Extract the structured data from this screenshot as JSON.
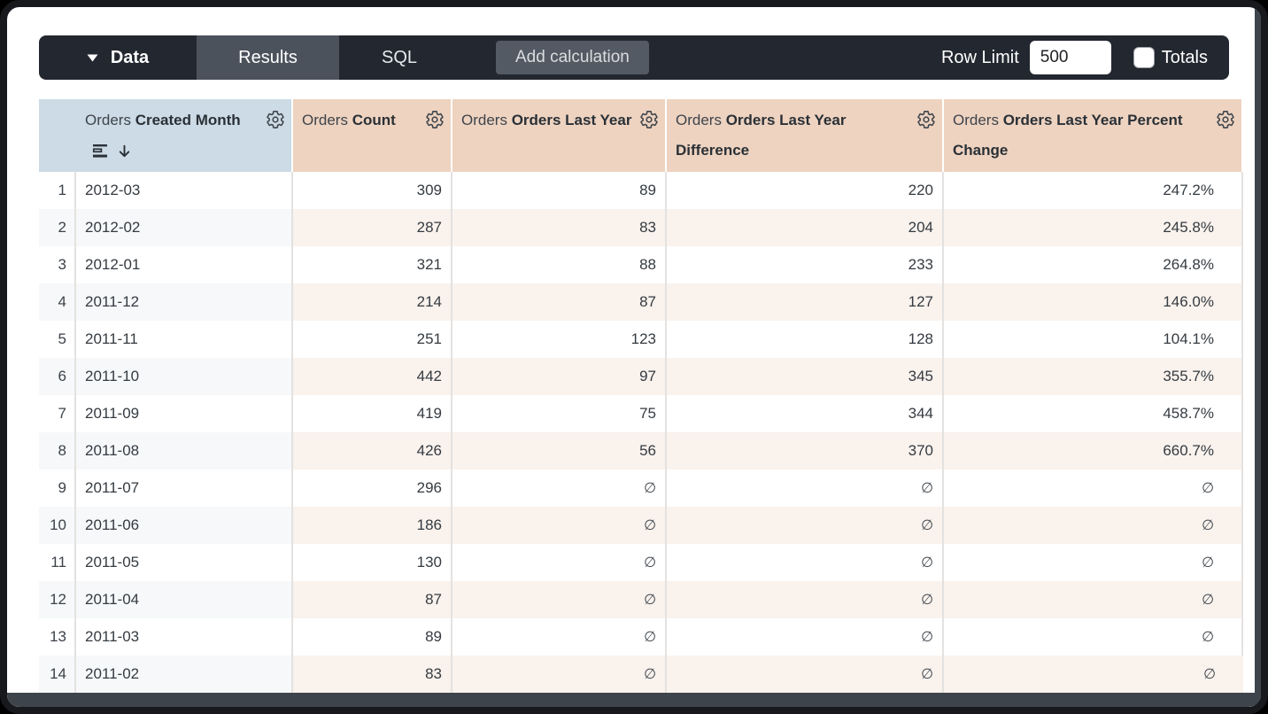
{
  "toolbar": {
    "data_label": "Data",
    "results_label": "Results",
    "sql_label": "SQL",
    "add_calculation_label": "Add calculation",
    "row_limit_label": "Row Limit",
    "row_limit_value": "500",
    "totals_label": "Totals",
    "totals_checked": false
  },
  "colors": {
    "toolbar_bg": "#23272f",
    "active_tab_bg": "#4c525c",
    "dimension_header_bg": "#ccdbe5",
    "measure_header_bg": "#eed3c0",
    "even_row_dimension_bg": "#f6f8fa",
    "even_row_measure_bg": "#f9f2ed"
  },
  "table": {
    "null_symbol": "∅",
    "columns": [
      {
        "view": "Orders",
        "field": "Created Month",
        "type": "dimension",
        "sorted_desc": true
      },
      {
        "view": "Orders",
        "field": "Count",
        "type": "measure",
        "sorted_desc": false
      },
      {
        "view": "Orders",
        "field": "Orders Last Year",
        "type": "measure",
        "sorted_desc": false
      },
      {
        "view": "Orders",
        "field": "Orders Last Year Difference",
        "type": "measure",
        "sorted_desc": false
      },
      {
        "view": "Orders",
        "field": "Orders Last Year Percent Change",
        "type": "measure",
        "sorted_desc": false
      }
    ],
    "rows": [
      {
        "index": "1",
        "month": "2012-03",
        "count": "309",
        "last_year": "89",
        "difference": "220",
        "percent_change": "247.2%"
      },
      {
        "index": "2",
        "month": "2012-02",
        "count": "287",
        "last_year": "83",
        "difference": "204",
        "percent_change": "245.8%"
      },
      {
        "index": "3",
        "month": "2012-01",
        "count": "321",
        "last_year": "88",
        "difference": "233",
        "percent_change": "264.8%"
      },
      {
        "index": "4",
        "month": "2011-12",
        "count": "214",
        "last_year": "87",
        "difference": "127",
        "percent_change": "146.0%"
      },
      {
        "index": "5",
        "month": "2011-11",
        "count": "251",
        "last_year": "123",
        "difference": "128",
        "percent_change": "104.1%"
      },
      {
        "index": "6",
        "month": "2011-10",
        "count": "442",
        "last_year": "97",
        "difference": "345",
        "percent_change": "355.7%"
      },
      {
        "index": "7",
        "month": "2011-09",
        "count": "419",
        "last_year": "75",
        "difference": "344",
        "percent_change": "458.7%"
      },
      {
        "index": "8",
        "month": "2011-08",
        "count": "426",
        "last_year": "56",
        "difference": "370",
        "percent_change": "660.7%"
      },
      {
        "index": "9",
        "month": "2011-07",
        "count": "296",
        "last_year": null,
        "difference": null,
        "percent_change": null
      },
      {
        "index": "10",
        "month": "2011-06",
        "count": "186",
        "last_year": null,
        "difference": null,
        "percent_change": null
      },
      {
        "index": "11",
        "month": "2011-05",
        "count": "130",
        "last_year": null,
        "difference": null,
        "percent_change": null
      },
      {
        "index": "12",
        "month": "2011-04",
        "count": "87",
        "last_year": null,
        "difference": null,
        "percent_change": null
      },
      {
        "index": "13",
        "month": "2011-03",
        "count": "89",
        "last_year": null,
        "difference": null,
        "percent_change": null
      },
      {
        "index": "14",
        "month": "2011-02",
        "count": "83",
        "last_year": null,
        "difference": null,
        "percent_change": null
      }
    ]
  }
}
